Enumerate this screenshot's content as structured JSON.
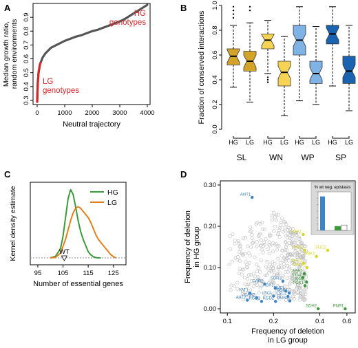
{
  "colors": {
    "curve": "#555555",
    "curve_end": "#d62728",
    "annot_red": "#d62728",
    "SL": "#d4a32a",
    "WN": "#f7d354",
    "WP": "#7fb2e5",
    "SP": "#1a63b0",
    "HG_line": "#3a9a3a",
    "LG_line": "#e0801c",
    "pt_blue": "#3c84c6",
    "pt_green": "#3a9a3a",
    "pt_yellow": "#d8d820",
    "pt_grey": "#c0c0c0",
    "inset_bg": "#d9d9d9"
  },
  "panel_labels": {
    "A": "A",
    "B": "B",
    "C": "C",
    "D": "D"
  },
  "chart_data": [
    {
      "panel": "A",
      "type": "line",
      "xlabel": "Neutral trajectory",
      "ylabel": "Median growth ratio,\nrandom environments",
      "xlim": [
        -150,
        4100
      ],
      "ylim": [
        0.27,
        1.0
      ],
      "xticks": [
        0,
        1000,
        2000,
        3000,
        4000
      ],
      "yticks": [
        0.3,
        0.4,
        0.5,
        0.6,
        0.7,
        0.8,
        0.9
      ],
      "x": [
        0,
        20,
        50,
        100,
        200,
        300,
        400,
        500,
        600,
        800,
        1000,
        1200,
        1400,
        1600,
        1800,
        2000,
        2200,
        2400,
        2600,
        2800,
        3000,
        3200,
        3400,
        3600,
        3800,
        4000
      ],
      "y": [
        0.29,
        0.42,
        0.5,
        0.56,
        0.61,
        0.64,
        0.66,
        0.68,
        0.69,
        0.71,
        0.73,
        0.745,
        0.76,
        0.77,
        0.785,
        0.8,
        0.81,
        0.825,
        0.84,
        0.855,
        0.87,
        0.89,
        0.915,
        0.94,
        0.965,
        0.99
      ],
      "red_segments": [
        [
          0,
          120
        ]
      ],
      "annotations": [
        {
          "text": "HG\ngenotypes",
          "x": 3700,
          "y": 0.9
        },
        {
          "text": "LG\ngenotypes",
          "x": 300,
          "y": 0.36
        }
      ]
    },
    {
      "panel": "B",
      "type": "box",
      "ylabel": "Fraction of conserved interactions",
      "ylim": [
        0.0,
        1.0
      ],
      "yticks": [
        0.0,
        0.2,
        0.4,
        0.6,
        0.8,
        1.0
      ],
      "notched": true,
      "groups": [
        {
          "name": "SL",
          "boxes": [
            {
              "label": "HG",
              "min": 0.34,
              "q1": 0.52,
              "median": 0.59,
              "q3": 0.65,
              "max": 0.84,
              "outliers": [
                0.9,
                0.93,
                0.96,
                0.99
              ]
            },
            {
              "label": "LG",
              "min": 0.22,
              "q1": 0.47,
              "median": 0.55,
              "q3": 0.63,
              "max": 0.86,
              "outliers": [
                0.96,
                0.99
              ]
            }
          ]
        },
        {
          "name": "WN",
          "boxes": [
            {
              "label": "HG",
              "min": 0.45,
              "q1": 0.65,
              "median": 0.72,
              "q3": 0.77,
              "max": 0.88,
              "outliers": [
                0.42,
                0.4,
                0.38
              ]
            },
            {
              "label": "LG",
              "min": 0.11,
              "q1": 0.35,
              "median": 0.46,
              "q3": 0.55,
              "max": 0.75,
              "outliers": []
            }
          ]
        },
        {
          "name": "WP",
          "boxes": [
            {
              "label": "HG",
              "min": 0.23,
              "q1": 0.6,
              "median": 0.72,
              "q3": 0.84,
              "max": 0.99,
              "outliers": []
            },
            {
              "label": "LG",
              "min": 0.2,
              "q1": 0.37,
              "median": 0.45,
              "q3": 0.55,
              "max": 0.83,
              "outliers": []
            }
          ]
        },
        {
          "name": "SP",
          "boxes": [
            {
              "label": "HG",
              "min": 0.35,
              "q1": 0.69,
              "median": 0.77,
              "q3": 0.84,
              "max": 0.99,
              "outliers": []
            },
            {
              "label": "LG",
              "min": 0.15,
              "q1": 0.37,
              "median": 0.47,
              "q3": 0.59,
              "max": 0.84,
              "outliers": []
            }
          ]
        }
      ]
    },
    {
      "panel": "C",
      "type": "line",
      "xlabel": "Number of essential genes",
      "ylabel": "Kernel density estimate",
      "xlim": [
        92,
        130
      ],
      "xticks": [
        95,
        105,
        115,
        125
      ],
      "legend": "top-right",
      "series": [
        {
          "name": "HG",
          "x": [
            100,
            102,
            104,
            105,
            106,
            107,
            108,
            109,
            110,
            111,
            112,
            113,
            114,
            115,
            116,
            117,
            118,
            119,
            120
          ],
          "y": [
            0,
            0.005,
            0.03,
            0.07,
            0.13,
            0.19,
            0.22,
            0.205,
            0.165,
            0.12,
            0.085,
            0.06,
            0.04,
            0.02,
            0.01,
            0.004,
            0.001,
            0,
            0
          ]
        },
        {
          "name": "LG",
          "x": [
            100,
            102,
            104,
            106,
            108,
            109,
            110,
            111,
            112,
            113,
            114,
            115,
            116,
            117,
            118,
            119,
            120,
            121,
            122,
            123,
            124,
            125,
            126
          ],
          "y": [
            0,
            0.002,
            0.015,
            0.06,
            0.12,
            0.145,
            0.16,
            0.165,
            0.16,
            0.15,
            0.14,
            0.13,
            0.115,
            0.095,
            0.075,
            0.06,
            0.05,
            0.04,
            0.03,
            0.02,
            0.01,
            0.004,
            0
          ]
        }
      ],
      "marker": {
        "text": "WT",
        "x": 105.5
      }
    },
    {
      "panel": "D",
      "type": "scatter",
      "xlabel": "Frequency of deletion\nin LG group",
      "ylabel": "Frequency of deletion\nin HG group",
      "xscale": "log",
      "xlim": [
        0.09,
        0.68
      ],
      "ylim": [
        -0.01,
        0.31
      ],
      "xticks": [
        0.1,
        0.2,
        0.4,
        0.6
      ],
      "yticks": [
        0.0,
        0.1,
        0.2,
        0.3
      ],
      "labeled_points": [
        {
          "label": "ANT1",
          "x": 0.145,
          "y": 0.27,
          "color": "blue"
        },
        {
          "label": "SDH3",
          "x": 0.23,
          "y": 0.067,
          "color": "blue"
        },
        {
          "label": "CAR1",
          "x": 0.175,
          "y": 0.06,
          "color": "blue"
        },
        {
          "label": "AGX1",
          "x": 0.205,
          "y": 0.05,
          "color": "blue"
        },
        {
          "label": "PUT1",
          "x": 0.24,
          "y": 0.043,
          "color": "blue"
        },
        {
          "label": "YAT1",
          "x": 0.14,
          "y": 0.038,
          "color": "blue"
        },
        {
          "label": "ODR1",
          "x": 0.253,
          "y": 0.038,
          "color": "blue"
        },
        {
          "label": "LSC1",
          "x": 0.2,
          "y": 0.031,
          "color": "blue"
        },
        {
          "label": "LSC2",
          "x": 0.248,
          "y": 0.03,
          "color": "blue"
        },
        {
          "label": "CAR2",
          "x": 0.155,
          "y": 0.027,
          "color": "blue"
        },
        {
          "label": "AAT2",
          "x": 0.135,
          "y": 0.021,
          "color": "blue"
        },
        {
          "label": "KGD1",
          "x": 0.167,
          "y": 0.018,
          "color": "blue"
        },
        {
          "label": "KGD2",
          "x": 0.206,
          "y": 0.018,
          "color": "blue"
        },
        {
          "label": "DUR3",
          "x": 0.255,
          "y": 0.019,
          "color": "blue"
        },
        {
          "label": "HXK1",
          "x": 0.312,
          "y": 0.18,
          "color": "yellow"
        },
        {
          "label": "RBK1",
          "x": 0.38,
          "y": 0.127,
          "color": "yellow"
        },
        {
          "label": "HXK2",
          "x": 0.318,
          "y": 0.142,
          "color": "yellow"
        },
        {
          "label": "SUC2",
          "x": 0.45,
          "y": 0.142,
          "color": "yellow"
        },
        {
          "label": "GAL1",
          "x": 0.313,
          "y": 0.11,
          "color": "yellow"
        },
        {
          "label": "GAL10",
          "x": 0.33,
          "y": 0.1,
          "color": "yellow"
        },
        {
          "label": "AAH1",
          "x": 0.317,
          "y": 0.085,
          "color": "green"
        },
        {
          "label": "XYL2",
          "x": 0.31,
          "y": 0.076,
          "color": "green"
        },
        {
          "label": "XKS1",
          "x": 0.328,
          "y": 0.065,
          "color": "green"
        },
        {
          "label": "PCK1",
          "x": 0.32,
          "y": 0.056,
          "color": "green"
        },
        {
          "label": "SDH2",
          "x": 0.39,
          "y": 0.0,
          "color": "green"
        },
        {
          "label": "PNP1",
          "x": 0.585,
          "y": 0.0,
          "color": "green"
        }
      ],
      "inset": {
        "title": "% wt neg. epistasis",
        "bars": [
          {
            "color": "blue",
            "value": 0.95
          },
          {
            "color": "green",
            "value": 0.12
          },
          {
            "color": "white",
            "value": 0.15
          }
        ]
      }
    }
  ]
}
